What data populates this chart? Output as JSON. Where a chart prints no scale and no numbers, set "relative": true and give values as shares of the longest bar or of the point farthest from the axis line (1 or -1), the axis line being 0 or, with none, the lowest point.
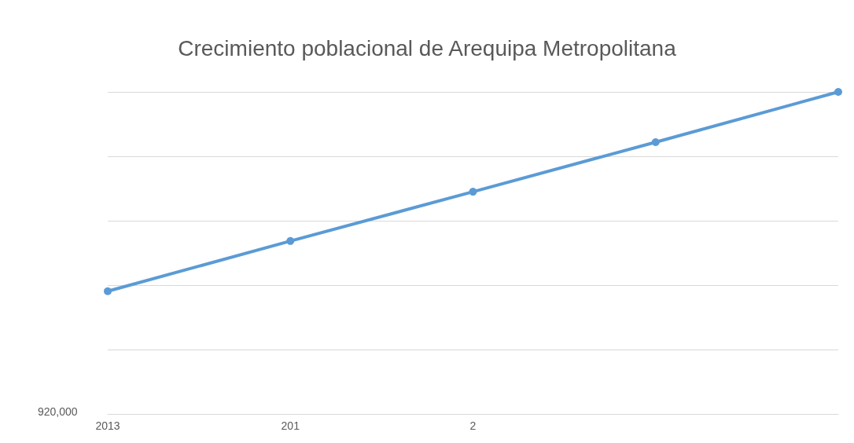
{
  "chart_data": {
    "type": "line",
    "title": "Crecimiento poblacional de Arequipa Metropolitana",
    "categories": [
      "2013",
      "201",
      "2",
      null,
      null
    ],
    "series": [
      {
        "color": "#5b9bd5",
        "values": [
          0.381,
          0.537,
          0.69,
          0.844,
          1.0
        ]
      }
    ],
    "relative": true,
    "grid": "y",
    "marker": "circle",
    "line_style": "solid",
    "annotations": [
      "920,000"
    ]
  }
}
